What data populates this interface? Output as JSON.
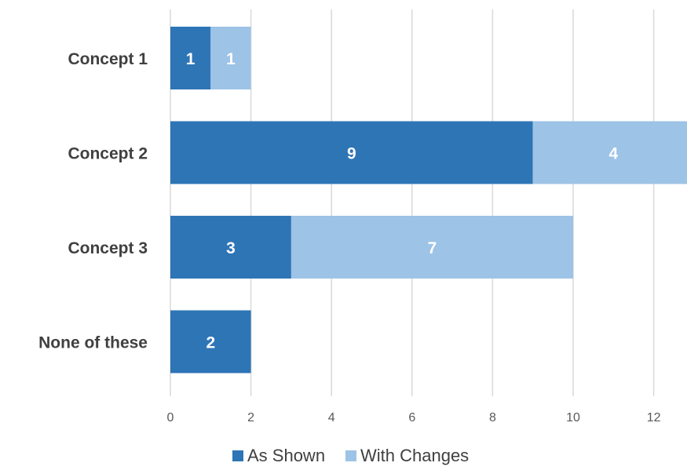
{
  "chart_data": {
    "type": "bar",
    "orientation": "horizontal",
    "stacked": true,
    "categories": [
      "Concept 1",
      "Concept 2",
      "Concept 3",
      "None of these"
    ],
    "series": [
      {
        "name": "As Shown",
        "values": [
          1,
          9,
          3,
          2
        ],
        "color": "#2e75b6"
      },
      {
        "name": "With Changes",
        "values": [
          1,
          4,
          7,
          0
        ],
        "color": "#9dc3e6"
      }
    ],
    "title": "",
    "xlabel": "",
    "ylabel": "",
    "xlim": [
      0,
      12.8
    ],
    "x_ticks": [
      "0",
      "2",
      "4",
      "6",
      "8",
      "10",
      "12"
    ],
    "grid": true,
    "data_labels": true,
    "legend_position": "bottom"
  }
}
